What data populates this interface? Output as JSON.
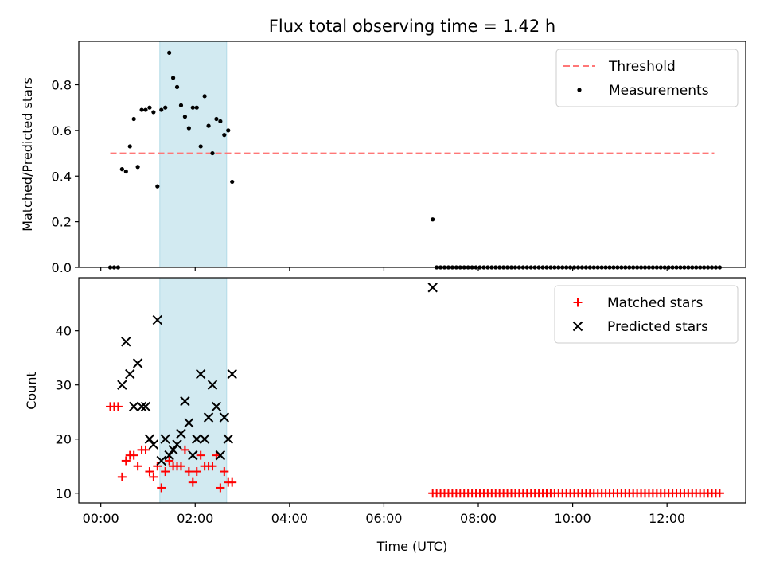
{
  "figure": {
    "title": "Flux total observing time = 1.42 h",
    "xlabel": "Time (UTC)"
  },
  "chart_data": [
    {
      "type": "scatter",
      "ylabel": "Matched/Predicted stars",
      "xlim": [
        "-00:28",
        "13:40"
      ],
      "ylim": [
        0,
        0.99
      ],
      "yticks": [
        0.0,
        0.2,
        0.4,
        0.6,
        0.8
      ],
      "ytick_labels": [
        "0.0",
        "0.2",
        "0.4",
        "0.6",
        "0.8"
      ],
      "grid": false,
      "legend_position": "top-right",
      "shaded_span": {
        "from": "01:15",
        "to": "02:40",
        "color": "#add8e6"
      },
      "threshold": {
        "name": "Threshold",
        "value": 0.5,
        "from": "00:12",
        "to": "13:00",
        "color": "#ff7777"
      },
      "series": [
        {
          "name": "Measurements",
          "marker": "dot",
          "color": "#000000",
          "points": [
            [
              "00:12",
              0.0
            ],
            [
              "00:17",
              0.0
            ],
            [
              "00:22",
              0.0
            ],
            [
              "00:27",
              0.43
            ],
            [
              "00:32",
              0.42
            ],
            [
              "00:37",
              0.53
            ],
            [
              "00:42",
              0.65
            ],
            [
              "00:47",
              0.44
            ],
            [
              "00:52",
              0.69
            ],
            [
              "00:57",
              0.69
            ],
            [
              "01:02",
              0.7
            ],
            [
              "01:07",
              0.68
            ],
            [
              "01:12",
              0.355
            ],
            [
              "01:17",
              0.69
            ],
            [
              "01:22",
              0.7
            ],
            [
              "01:27",
              0.94
            ],
            [
              "01:32",
              0.83
            ],
            [
              "01:37",
              0.79
            ],
            [
              "01:42",
              0.71
            ],
            [
              "01:47",
              0.66
            ],
            [
              "01:52",
              0.61
            ],
            [
              "01:57",
              0.7
            ],
            [
              "02:02",
              0.7
            ],
            [
              "02:07",
              0.53
            ],
            [
              "02:12",
              0.75
            ],
            [
              "02:17",
              0.62
            ],
            [
              "02:22",
              0.5
            ],
            [
              "02:27",
              0.65
            ],
            [
              "02:32",
              0.64
            ],
            [
              "02:37",
              0.58
            ],
            [
              "02:42",
              0.6
            ],
            [
              "02:47",
              0.375
            ],
            [
              "07:02",
              0.21
            ]
          ],
          "zero_run": {
            "from": "07:07",
            "to": "13:07",
            "step_minutes": 5,
            "value": 0.0
          }
        }
      ]
    },
    {
      "type": "scatter",
      "ylabel": "Count",
      "xlim": [
        "-00:28",
        "13:40"
      ],
      "ylim": [
        8.2,
        49.8
      ],
      "yticks": [
        10,
        20,
        30,
        40
      ],
      "ytick_labels": [
        "10",
        "20",
        "30",
        "40"
      ],
      "xticks": [
        "00:00",
        "02:00",
        "04:00",
        "06:00",
        "08:00",
        "10:00",
        "12:00"
      ],
      "xtick_labels": [
        "00:00",
        "02:00",
        "04:00",
        "06:00",
        "08:00",
        "10:00",
        "12:00"
      ],
      "grid": false,
      "legend_position": "top-right",
      "shaded_span": {
        "from": "01:15",
        "to": "02:40",
        "color": "#add8e6"
      },
      "series": [
        {
          "name": "Matched stars",
          "marker": "plus",
          "color": "#ff0000",
          "points": [
            [
              "00:12",
              26
            ],
            [
              "00:17",
              26
            ],
            [
              "00:22",
              26
            ],
            [
              "00:27",
              13
            ],
            [
              "00:32",
              16
            ],
            [
              "00:37",
              17
            ],
            [
              "00:42",
              17
            ],
            [
              "00:47",
              15
            ],
            [
              "00:52",
              18
            ],
            [
              "00:57",
              18
            ],
            [
              "01:02",
              14
            ],
            [
              "01:07",
              13
            ],
            [
              "01:12",
              15
            ],
            [
              "01:17",
              11
            ],
            [
              "01:22",
              14
            ],
            [
              "01:27",
              16
            ],
            [
              "01:32",
              15
            ],
            [
              "01:37",
              15
            ],
            [
              "01:42",
              15
            ],
            [
              "01:47",
              18
            ],
            [
              "01:52",
              14
            ],
            [
              "01:57",
              12
            ],
            [
              "02:02",
              14
            ],
            [
              "02:07",
              17
            ],
            [
              "02:12",
              15
            ],
            [
              "02:17",
              15
            ],
            [
              "02:22",
              15
            ],
            [
              "02:27",
              17
            ],
            [
              "02:32",
              11
            ],
            [
              "02:37",
              14
            ],
            [
              "02:42",
              12
            ],
            [
              "02:47",
              12
            ]
          ],
          "constant_run": {
            "from": "07:02",
            "to": "13:07",
            "step_minutes": 5,
            "value": 10
          }
        },
        {
          "name": "Predicted stars",
          "marker": "x",
          "color": "#000000",
          "points": [
            [
              "00:27",
              30
            ],
            [
              "00:32",
              38
            ],
            [
              "00:37",
              32
            ],
            [
              "00:42",
              26
            ],
            [
              "00:47",
              34
            ],
            [
              "00:52",
              26
            ],
            [
              "00:57",
              26
            ],
            [
              "01:02",
              20
            ],
            [
              "01:07",
              19
            ],
            [
              "01:12",
              42
            ],
            [
              "01:17",
              16
            ],
            [
              "01:22",
              20
            ],
            [
              "01:27",
              17
            ],
            [
              "01:32",
              18
            ],
            [
              "01:37",
              19
            ],
            [
              "01:42",
              21
            ],
            [
              "01:47",
              27
            ],
            [
              "01:52",
              23
            ],
            [
              "01:57",
              17
            ],
            [
              "02:02",
              20
            ],
            [
              "02:07",
              32
            ],
            [
              "02:12",
              20
            ],
            [
              "02:17",
              24
            ],
            [
              "02:22",
              30
            ],
            [
              "02:27",
              26
            ],
            [
              "02:32",
              17
            ],
            [
              "02:37",
              24
            ],
            [
              "02:42",
              20
            ],
            [
              "02:47",
              32
            ],
            [
              "07:02",
              48
            ]
          ]
        }
      ]
    }
  ]
}
